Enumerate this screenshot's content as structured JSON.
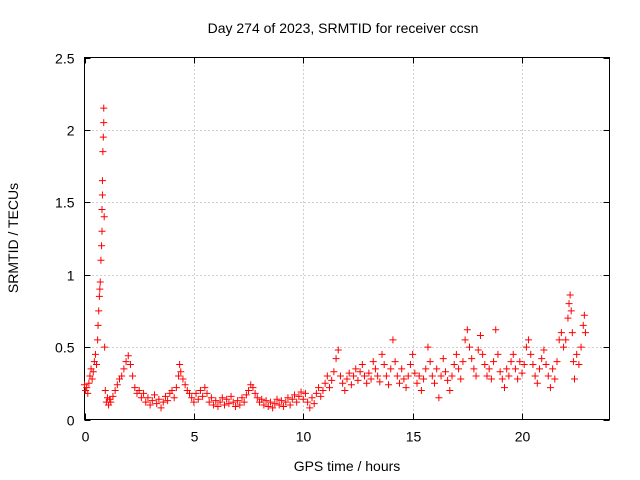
{
  "chart_data": {
    "type": "scatter",
    "title": "Day 274 of 2023, SRMTID for receiver ccsn",
    "xlabel": "GPS time / hours",
    "ylabel": "SRMTID / TECUs",
    "xlim": [
      0,
      24
    ],
    "ylim": [
      0,
      2.5
    ],
    "x_ticks": [
      0,
      5,
      10,
      15,
      20
    ],
    "x_tick_labels": [
      "0",
      "5",
      "10",
      "15",
      "20"
    ],
    "y_ticks": [
      0,
      0.5,
      1,
      1.5,
      2,
      2.5
    ],
    "y_tick_labels": [
      "0",
      "0.5",
      "1",
      "1.5",
      "2",
      "2.5"
    ],
    "grid": true,
    "marker": "+",
    "marker_color": "#ff0000",
    "series": [
      {
        "name": "SRMTID",
        "points": [
          [
            0.0,
            0.24
          ],
          [
            0.05,
            0.2
          ],
          [
            0.1,
            0.22
          ],
          [
            0.15,
            0.18
          ],
          [
            0.2,
            0.25
          ],
          [
            0.25,
            0.3
          ],
          [
            0.3,
            0.35
          ],
          [
            0.35,
            0.28
          ],
          [
            0.4,
            0.33
          ],
          [
            0.45,
            0.4
          ],
          [
            0.5,
            0.45
          ],
          [
            0.55,
            0.38
          ],
          [
            0.6,
            0.55
          ],
          [
            0.62,
            0.65
          ],
          [
            0.65,
            0.75
          ],
          [
            0.68,
            0.85
          ],
          [
            0.7,
            0.9
          ],
          [
            0.72,
            0.95
          ],
          [
            0.75,
            1.1
          ],
          [
            0.78,
            1.2
          ],
          [
            0.8,
            1.3
          ],
          [
            0.8,
            1.45
          ],
          [
            0.82,
            1.55
          ],
          [
            0.82,
            1.65
          ],
          [
            0.84,
            1.85
          ],
          [
            0.86,
            1.95
          ],
          [
            0.88,
            2.05
          ],
          [
            0.88,
            2.15
          ],
          [
            0.9,
            1.4
          ],
          [
            0.92,
            0.5
          ],
          [
            0.95,
            0.2
          ],
          [
            1.0,
            0.12
          ],
          [
            1.05,
            0.15
          ],
          [
            1.1,
            0.1
          ],
          [
            1.15,
            0.14
          ],
          [
            1.2,
            0.12
          ],
          [
            1.3,
            0.16
          ],
          [
            1.4,
            0.2
          ],
          [
            1.5,
            0.24
          ],
          [
            1.6,
            0.28
          ],
          [
            1.7,
            0.3
          ],
          [
            1.8,
            0.35
          ],
          [
            1.9,
            0.4
          ],
          [
            2.0,
            0.44
          ],
          [
            2.1,
            0.38
          ],
          [
            2.2,
            0.3
          ],
          [
            2.3,
            0.22
          ],
          [
            2.4,
            0.18
          ],
          [
            2.5,
            0.2
          ],
          [
            2.6,
            0.15
          ],
          [
            2.7,
            0.18
          ],
          [
            2.8,
            0.12
          ],
          [
            2.9,
            0.15
          ],
          [
            3.0,
            0.1
          ],
          [
            3.1,
            0.13
          ],
          [
            3.2,
            0.17
          ],
          [
            3.3,
            0.11
          ],
          [
            3.4,
            0.14
          ],
          [
            3.5,
            0.08
          ],
          [
            3.6,
            0.12
          ],
          [
            3.7,
            0.16
          ],
          [
            3.8,
            0.13
          ],
          [
            3.9,
            0.18
          ],
          [
            4.0,
            0.2
          ],
          [
            4.1,
            0.15
          ],
          [
            4.2,
            0.22
          ],
          [
            4.3,
            0.3
          ],
          [
            4.35,
            0.38
          ],
          [
            4.4,
            0.33
          ],
          [
            4.5,
            0.28
          ],
          [
            4.6,
            0.24
          ],
          [
            4.7,
            0.2
          ],
          [
            4.8,
            0.18
          ],
          [
            4.9,
            0.15
          ],
          [
            5.0,
            0.12
          ],
          [
            5.1,
            0.18
          ],
          [
            5.2,
            0.14
          ],
          [
            5.3,
            0.2
          ],
          [
            5.4,
            0.16
          ],
          [
            5.5,
            0.22
          ],
          [
            5.6,
            0.18
          ],
          [
            5.7,
            0.12
          ],
          [
            5.8,
            0.15
          ],
          [
            5.9,
            0.1
          ],
          [
            6.0,
            0.13
          ],
          [
            6.1,
            0.09
          ],
          [
            6.2,
            0.12
          ],
          [
            6.3,
            0.15
          ],
          [
            6.4,
            0.1
          ],
          [
            6.5,
            0.14
          ],
          [
            6.6,
            0.11
          ],
          [
            6.7,
            0.16
          ],
          [
            6.8,
            0.12
          ],
          [
            6.9,
            0.09
          ],
          [
            7.0,
            0.13
          ],
          [
            7.1,
            0.1
          ],
          [
            7.2,
            0.15
          ],
          [
            7.3,
            0.12
          ],
          [
            7.4,
            0.17
          ],
          [
            7.5,
            0.2
          ],
          [
            7.6,
            0.24
          ],
          [
            7.7,
            0.22
          ],
          [
            7.8,
            0.18
          ],
          [
            7.9,
            0.15
          ],
          [
            8.0,
            0.12
          ],
          [
            8.1,
            0.14
          ],
          [
            8.2,
            0.1
          ],
          [
            8.3,
            0.13
          ],
          [
            8.4,
            0.09
          ],
          [
            8.5,
            0.12
          ],
          [
            8.6,
            0.08
          ],
          [
            8.7,
            0.11
          ],
          [
            8.8,
            0.14
          ],
          [
            8.9,
            0.1
          ],
          [
            9.0,
            0.13
          ],
          [
            9.1,
            0.09
          ],
          [
            9.2,
            0.12
          ],
          [
            9.3,
            0.15
          ],
          [
            9.4,
            0.1
          ],
          [
            9.5,
            0.14
          ],
          [
            9.6,
            0.17
          ],
          [
            9.7,
            0.12
          ],
          [
            9.8,
            0.16
          ],
          [
            9.9,
            0.19
          ],
          [
            10.0,
            0.14
          ],
          [
            10.1,
            0.18
          ],
          [
            10.2,
            0.12
          ],
          [
            10.3,
            0.08
          ],
          [
            10.4,
            0.15
          ],
          [
            10.5,
            0.11
          ],
          [
            10.6,
            0.18
          ],
          [
            10.7,
            0.22
          ],
          [
            10.8,
            0.16
          ],
          [
            10.9,
            0.2
          ],
          [
            11.0,
            0.25
          ],
          [
            11.1,
            0.3
          ],
          [
            11.2,
            0.22
          ],
          [
            11.3,
            0.27
          ],
          [
            11.4,
            0.33
          ],
          [
            11.5,
            0.42
          ],
          [
            11.6,
            0.48
          ],
          [
            11.7,
            0.3
          ],
          [
            11.8,
            0.25
          ],
          [
            11.9,
            0.2
          ],
          [
            12.0,
            0.28
          ],
          [
            12.1,
            0.32
          ],
          [
            12.2,
            0.24
          ],
          [
            12.3,
            0.3
          ],
          [
            12.4,
            0.35
          ],
          [
            12.5,
            0.27
          ],
          [
            12.6,
            0.33
          ],
          [
            12.7,
            0.38
          ],
          [
            12.8,
            0.3
          ],
          [
            12.9,
            0.25
          ],
          [
            13.0,
            0.32
          ],
          [
            13.1,
            0.28
          ],
          [
            13.2,
            0.4
          ],
          [
            13.3,
            0.35
          ],
          [
            13.4,
            0.3
          ],
          [
            13.5,
            0.26
          ],
          [
            13.6,
            0.45
          ],
          [
            13.7,
            0.38
          ],
          [
            13.8,
            0.3
          ],
          [
            13.9,
            0.24
          ],
          [
            14.0,
            0.35
          ],
          [
            14.1,
            0.55
          ],
          [
            14.2,
            0.4
          ],
          [
            14.3,
            0.3
          ],
          [
            14.4,
            0.25
          ],
          [
            14.5,
            0.35
          ],
          [
            14.6,
            0.28
          ],
          [
            14.7,
            0.22
          ],
          [
            14.8,
            0.3
          ],
          [
            14.9,
            0.38
          ],
          [
            15.0,
            0.45
          ],
          [
            15.1,
            0.32
          ],
          [
            15.2,
            0.25
          ],
          [
            15.3,
            0.3
          ],
          [
            15.4,
            0.2
          ],
          [
            15.5,
            0.28
          ],
          [
            15.6,
            0.35
          ],
          [
            15.7,
            0.5
          ],
          [
            15.8,
            0.4
          ],
          [
            15.9,
            0.3
          ],
          [
            16.0,
            0.25
          ],
          [
            16.1,
            0.35
          ],
          [
            16.2,
            0.15
          ],
          [
            16.3,
            0.3
          ],
          [
            16.4,
            0.42
          ],
          [
            16.5,
            0.33
          ],
          [
            16.6,
            0.27
          ],
          [
            16.7,
            0.2
          ],
          [
            16.8,
            0.3
          ],
          [
            16.9,
            0.38
          ],
          [
            17.0,
            0.45
          ],
          [
            17.1,
            0.35
          ],
          [
            17.2,
            0.28
          ],
          [
            17.3,
            0.4
          ],
          [
            17.4,
            0.55
          ],
          [
            17.5,
            0.62
          ],
          [
            17.6,
            0.5
          ],
          [
            17.7,
            0.42
          ],
          [
            17.8,
            0.35
          ],
          [
            17.9,
            0.3
          ],
          [
            18.0,
            0.48
          ],
          [
            18.1,
            0.58
          ],
          [
            18.2,
            0.45
          ],
          [
            18.3,
            0.38
          ],
          [
            18.4,
            0.3
          ],
          [
            18.5,
            0.35
          ],
          [
            18.6,
            0.28
          ],
          [
            18.7,
            0.4
          ],
          [
            18.8,
            0.62
          ],
          [
            18.9,
            0.45
          ],
          [
            19.0,
            0.33
          ],
          [
            19.1,
            0.28
          ],
          [
            19.2,
            0.22
          ],
          [
            19.3,
            0.35
          ],
          [
            19.4,
            0.3
          ],
          [
            19.5,
            0.4
          ],
          [
            19.6,
            0.45
          ],
          [
            19.7,
            0.35
          ],
          [
            19.8,
            0.28
          ],
          [
            19.9,
            0.4
          ],
          [
            20.0,
            0.32
          ],
          [
            20.1,
            0.38
          ],
          [
            20.2,
            0.5
          ],
          [
            20.3,
            0.55
          ],
          [
            20.4,
            0.45
          ],
          [
            20.5,
            0.38
          ],
          [
            20.6,
            0.3
          ],
          [
            20.7,
            0.25
          ],
          [
            20.8,
            0.35
          ],
          [
            20.9,
            0.42
          ],
          [
            21.0,
            0.48
          ],
          [
            21.1,
            0.38
          ],
          [
            21.2,
            0.3
          ],
          [
            21.3,
            0.22
          ],
          [
            21.4,
            0.35
          ],
          [
            21.5,
            0.28
          ],
          [
            21.6,
            0.4
          ],
          [
            21.7,
            0.55
          ],
          [
            21.8,
            0.6
          ],
          [
            21.9,
            0.5
          ],
          [
            22.0,
            0.55
          ],
          [
            22.1,
            0.7
          ],
          [
            22.15,
            0.8
          ],
          [
            22.2,
            0.86
          ],
          [
            22.25,
            0.75
          ],
          [
            22.3,
            0.6
          ],
          [
            22.35,
            0.4
          ],
          [
            22.4,
            0.28
          ],
          [
            22.5,
            0.45
          ],
          [
            22.6,
            0.38
          ],
          [
            22.7,
            0.5
          ],
          [
            22.8,
            0.65
          ],
          [
            22.85,
            0.72
          ],
          [
            22.9,
            0.6
          ]
        ]
      }
    ]
  }
}
